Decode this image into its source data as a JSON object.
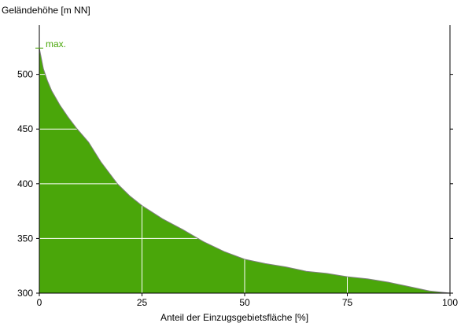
{
  "chart_data": {
    "type": "area",
    "title": "",
    "ylabel": "Geländehöhe [m NN]",
    "xlabel": "Anteil der Einzugsgebietsfläche [%]",
    "xlim": [
      0,
      100
    ],
    "ylim": [
      300,
      545
    ],
    "xticks": [
      0,
      25,
      50,
      75,
      100
    ],
    "yticks": [
      300,
      350,
      400,
      450,
      500
    ],
    "grid": true,
    "fill_color": "#4aa60a",
    "outline_color": "#808080",
    "annotation": {
      "label": "max.",
      "y": 524,
      "color": "#4aa60a"
    },
    "x": [
      0,
      1,
      2,
      3,
      5,
      7,
      9,
      12,
      15,
      19,
      22,
      25,
      30,
      35,
      40,
      45,
      50,
      55,
      60,
      65,
      70,
      75,
      80,
      85,
      90,
      95,
      100
    ],
    "y": [
      524,
      505,
      494,
      485,
      472,
      461,
      451,
      438,
      420,
      400,
      389,
      380,
      368,
      358,
      347,
      338,
      331,
      327,
      324,
      320,
      318,
      315,
      313,
      310,
      306,
      302,
      300
    ]
  }
}
